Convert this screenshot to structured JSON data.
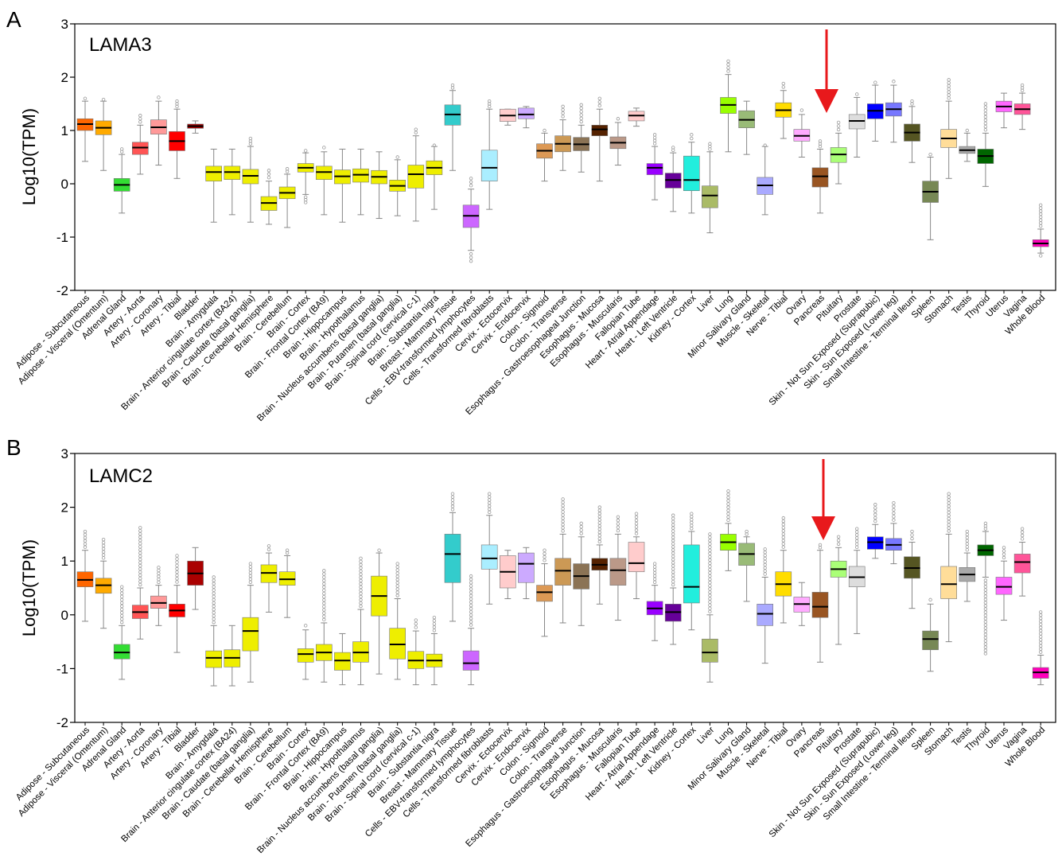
{
  "figure": {
    "panels": [
      {
        "letter": "A",
        "gene": "LAMA3",
        "ylabel": "Log10(TPM)",
        "arrow_tissue": "Pancreas"
      },
      {
        "letter": "B",
        "gene": "LAMC2",
        "ylabel": "Log10(TPM)",
        "arrow_tissue": "Pancreas"
      }
    ],
    "arrow_color": "#e8191c"
  },
  "chart_data": [
    {
      "type": "box",
      "title": "LAMA3",
      "ylabel": "Log10(TPM)",
      "ylim": [
        -2,
        3
      ],
      "yticks": [
        -2,
        -1,
        0,
        1,
        2,
        3
      ],
      "grid": false,
      "categories": [
        "Adipose - Subcutaneous",
        "Adipose - Visceral (Omentum)",
        "Adrenal Gland",
        "Artery - Aorta",
        "Artery - Coronary",
        "Artery - Tibial",
        "Bladder",
        "Brain - Amygdala",
        "Brain - Anterior cingulate cortex (BA24)",
        "Brain - Caudate (basal ganglia)",
        "Brain - Cerebellar Hemisphere",
        "Brain - Cerebellum",
        "Brain - Cortex",
        "Brain - Frontal Cortex (BA9)",
        "Brain - Hippocampus",
        "Brain - Hypothalamus",
        "Brain - Nucleus accumbens (basal ganglia)",
        "Brain - Putamen (basal ganglia)",
        "Brain - Spinal cord (cervical c-1)",
        "Brain - Substantia nigra",
        "Breast - Mammary Tissue",
        "Cells - EBV-transformed lymphocytes",
        "Cells - Transformed fibroblasts",
        "Cervix - Ectocervix",
        "Cervix - Endocervix",
        "Colon - Sigmoid",
        "Colon - Transverse",
        "Esophagus - Gastroesophageal Junction",
        "Esophagus - Mucosa",
        "Esophagus - Muscularis",
        "Fallopian Tube",
        "Heart - Atrial Appendage",
        "Heart - Left Ventricle",
        "Kidney - Cortex",
        "Liver",
        "Lung",
        "Minor Salivary Gland",
        "Muscle - Skeletal",
        "Nerve - Tibial",
        "Ovary",
        "Pancreas",
        "Pituitary",
        "Prostate",
        "Skin - Not Sun Exposed (Suprapubic)",
        "Skin - Sun Exposed (Lower leg)",
        "Small Intestine - Terminal Ileum",
        "Spleen",
        "Stomach",
        "Testis",
        "Thyroid",
        "Uterus",
        "Vagina",
        "Whole Blood"
      ],
      "colors": [
        "#ff6600",
        "#ffaa00",
        "#33dd33",
        "#ff5555",
        "#ff9999",
        "#ff0000",
        "#aa0000",
        "#eeee00",
        "#eeee00",
        "#eeee00",
        "#eeee00",
        "#eeee00",
        "#eeee00",
        "#eeee00",
        "#eeee00",
        "#eeee00",
        "#eeee00",
        "#eeee00",
        "#eeee00",
        "#eeee00",
        "#33cccc",
        "#cc66ff",
        "#aaeeff",
        "#ffcccc",
        "#ccaaff",
        "#dd9955",
        "#cc9955",
        "#8b7355",
        "#552200",
        "#bb9988",
        "#ffcccc",
        "#9900ff",
        "#660099",
        "#22eedd",
        "#aabb66",
        "#99ff00",
        "#99bb77",
        "#aaaaff",
        "#ffdd00",
        "#ffaaff",
        "#995522",
        "#aaff77",
        "#dddddd",
        "#0000ff",
        "#7777ff",
        "#555522",
        "#778855",
        "#ffdd99",
        "#aaaaaa",
        "#006600",
        "#ff66ff",
        "#ff5599",
        "#ff00bb"
      ],
      "medians": [
        1.12,
        1.05,
        -0.02,
        0.68,
        1.06,
        0.8,
        1.08,
        0.22,
        0.22,
        0.15,
        -0.36,
        -0.17,
        0.3,
        0.22,
        0.14,
        0.17,
        0.13,
        -0.04,
        0.18,
        0.3,
        1.3,
        -0.6,
        0.3,
        1.28,
        1.3,
        0.62,
        0.75,
        0.74,
        1.02,
        0.77,
        1.28,
        0.3,
        0.07,
        0.07,
        -0.22,
        1.48,
        1.2,
        -0.03,
        1.38,
        0.9,
        0.14,
        0.55,
        1.18,
        1.37,
        1.4,
        0.96,
        -0.15,
        0.85,
        0.63,
        0.52,
        1.45,
        1.4,
        -1.12
      ],
      "q1": [
        1.0,
        0.92,
        -0.14,
        0.55,
        0.93,
        0.62,
        1.04,
        0.05,
        0.08,
        0.0,
        -0.5,
        -0.28,
        0.22,
        0.08,
        0.0,
        0.03,
        0.0,
        -0.14,
        -0.08,
        0.17,
        1.1,
        -0.82,
        0.05,
        1.17,
        1.22,
        0.48,
        0.6,
        0.62,
        0.9,
        0.66,
        1.18,
        0.17,
        -0.08,
        -0.13,
        -0.45,
        1.32,
        1.05,
        -0.2,
        1.25,
        0.8,
        -0.06,
        0.4,
        1.03,
        1.22,
        1.27,
        0.8,
        -0.35,
        0.68,
        0.57,
        0.38,
        1.35,
        1.3,
        -1.18
      ],
      "q3": [
        1.22,
        1.18,
        0.1,
        0.78,
        1.2,
        0.98,
        1.12,
        0.33,
        0.33,
        0.27,
        -0.24,
        -0.06,
        0.38,
        0.33,
        0.26,
        0.28,
        0.25,
        0.07,
        0.35,
        0.43,
        1.48,
        -0.4,
        0.63,
        1.4,
        1.42,
        0.75,
        0.9,
        0.87,
        1.1,
        0.88,
        1.36,
        0.38,
        0.2,
        0.52,
        -0.04,
        1.62,
        1.37,
        0.12,
        1.52,
        1.02,
        0.3,
        0.68,
        1.3,
        1.5,
        1.52,
        1.12,
        0.05,
        1.02,
        0.7,
        0.65,
        1.55,
        1.5,
        -1.05
      ],
      "whisker_low": [
        0.42,
        0.25,
        -0.55,
        0.18,
        0.35,
        0.1,
        0.95,
        -0.72,
        -0.58,
        -0.72,
        -0.76,
        -0.82,
        -0.2,
        -0.58,
        -0.72,
        -0.58,
        -0.65,
        -0.6,
        -0.7,
        -0.48,
        0.25,
        -1.25,
        -0.48,
        1.1,
        1.05,
        0.05,
        0.25,
        0.22,
        0.05,
        0.35,
        1.08,
        -0.3,
        -0.52,
        -0.55,
        -0.92,
        0.6,
        0.55,
        -0.58,
        0.85,
        0.5,
        -0.55,
        0.0,
        0.5,
        0.8,
        0.78,
        0.4,
        -1.05,
        0.1,
        0.42,
        -0.05,
        1.05,
        1.02,
        -1.3
      ],
      "whisker_high": [
        1.55,
        1.55,
        0.55,
        1.1,
        1.55,
        1.4,
        1.18,
        0.65,
        0.65,
        0.7,
        0.05,
        0.18,
        0.58,
        0.6,
        0.65,
        0.65,
        0.6,
        0.45,
        0.9,
        0.7,
        1.75,
        -0.1,
        1.4,
        1.4,
        1.45,
        0.95,
        1.2,
        1.1,
        1.4,
        1.15,
        1.42,
        0.7,
        0.58,
        0.78,
        0.6,
        2.05,
        1.55,
        0.7,
        1.75,
        1.3,
        0.65,
        0.95,
        1.62,
        1.85,
        1.85,
        1.45,
        0.5,
        1.55,
        0.95,
        0.95,
        1.7,
        1.7,
        -0.85
      ],
      "outlier_low": [
        null,
        null,
        null,
        null,
        null,
        null,
        null,
        null,
        null,
        null,
        null,
        null,
        -0.35,
        null,
        null,
        null,
        null,
        null,
        null,
        null,
        null,
        -1.45,
        null,
        null,
        null,
        null,
        null,
        null,
        null,
        null,
        null,
        null,
        null,
        null,
        null,
        null,
        null,
        null,
        null,
        null,
        null,
        null,
        null,
        null,
        null,
        null,
        null,
        null,
        null,
        null,
        null,
        null,
        -1.35
      ],
      "outlier_high": [
        1.6,
        1.58,
        0.65,
        1.28,
        1.62,
        1.55,
        null,
        null,
        null,
        0.85,
        0.25,
        0.28,
        0.62,
        0.68,
        null,
        null,
        null,
        0.5,
        1.02,
        0.72,
        1.85,
        0.1,
        1.55,
        null,
        null,
        1.0,
        1.45,
        1.48,
        1.6,
        1.22,
        null,
        0.92,
        0.68,
        0.92,
        0.75,
        2.3,
        null,
        0.72,
        1.88,
        1.38,
        0.8,
        1.15,
        1.68,
        1.9,
        1.92,
        1.55,
        0.55,
        1.95,
        1.0,
        1.5,
        null,
        1.85,
        -0.4
      ]
    },
    {
      "type": "box",
      "title": "LAMC2",
      "ylabel": "Log10(TPM)",
      "ylim": [
        -2,
        3
      ],
      "yticks": [
        -2,
        -1,
        0,
        1,
        2,
        3
      ],
      "grid": false,
      "categories": [
        "Adipose - Subcutaneous",
        "Adipose - Visceral (Omentum)",
        "Adrenal Gland",
        "Artery - Aorta",
        "Artery - Coronary",
        "Artery - Tibial",
        "Bladder",
        "Brain - Amygdala",
        "Brain - Anterior cingulate cortex (BA24)",
        "Brain - Caudate (basal ganglia)",
        "Brain - Cerebellar Hemisphere",
        "Brain - Cerebellum",
        "Brain - Cortex",
        "Brain - Frontal Cortex (BA9)",
        "Brain - Hippocampus",
        "Brain - Hypothalamus",
        "Brain - Nucleus accumbens (basal ganglia)",
        "Brain - Putamen (basal ganglia)",
        "Brain - Spinal cord (cervical c-1)",
        "Brain - Substantia nigra",
        "Breast - Mammary Tissue",
        "Cells - EBV-transformed lymphocytes",
        "Cells - Transformed fibroblasts",
        "Cervix - Ectocervix",
        "Cervix - Endocervix",
        "Colon - Sigmoid",
        "Colon - Transverse",
        "Esophagus - Gastroesophageal Junction",
        "Esophagus - Mucosa",
        "Esophagus - Muscularis",
        "Fallopian Tube",
        "Heart - Atrial Appendage",
        "Heart - Left Ventricle",
        "Kidney - Cortex",
        "Liver",
        "Lung",
        "Minor Salivary Gland",
        "Muscle - Skeletal",
        "Nerve - Tibial",
        "Ovary",
        "Pancreas",
        "Pituitary",
        "Prostate",
        "Skin - Not Sun Exposed (Suprapubic)",
        "Skin - Sun Exposed (Lower leg)",
        "Small Intestine - Terminal Ileum",
        "Spleen",
        "Stomach",
        "Testis",
        "Thyroid",
        "Uterus",
        "Vagina",
        "Whole Blood"
      ],
      "colors": [
        "#ff6600",
        "#ffaa00",
        "#33dd33",
        "#ff5555",
        "#ff9999",
        "#ff0000",
        "#aa0000",
        "#eeee00",
        "#eeee00",
        "#eeee00",
        "#eeee00",
        "#eeee00",
        "#eeee00",
        "#eeee00",
        "#eeee00",
        "#eeee00",
        "#eeee00",
        "#eeee00",
        "#eeee00",
        "#eeee00",
        "#33cccc",
        "#cc66ff",
        "#aaeeff",
        "#ffcccc",
        "#ccaaff",
        "#dd9955",
        "#cc9955",
        "#8b7355",
        "#552200",
        "#bb9988",
        "#ffcccc",
        "#9900ff",
        "#660099",
        "#22eedd",
        "#aabb66",
        "#99ff00",
        "#99bb77",
        "#aaaaff",
        "#ffdd00",
        "#ffaaff",
        "#995522",
        "#aaff77",
        "#dddddd",
        "#0000ff",
        "#7777ff",
        "#555522",
        "#778855",
        "#ffdd99",
        "#aaaaaa",
        "#006600",
        "#ff66ff",
        "#ff5599",
        "#ff00bb"
      ],
      "medians": [
        0.65,
        0.55,
        -0.7,
        0.05,
        0.22,
        0.08,
        0.77,
        -0.8,
        -0.8,
        -0.3,
        0.78,
        0.66,
        -0.73,
        -0.7,
        -0.85,
        -0.7,
        0.35,
        -0.55,
        -0.85,
        -0.85,
        1.13,
        -0.9,
        1.05,
        0.8,
        0.95,
        0.42,
        0.82,
        0.72,
        0.93,
        0.83,
        0.96,
        0.12,
        0.05,
        0.52,
        -0.7,
        1.35,
        1.13,
        0.02,
        0.57,
        0.2,
        0.15,
        0.85,
        0.7,
        1.35,
        1.3,
        0.87,
        -0.45,
        0.57,
        0.75,
        1.2,
        0.52,
        0.98,
        -1.07
      ],
      "q1": [
        0.52,
        0.4,
        -0.82,
        -0.07,
        0.12,
        -0.04,
        0.55,
        -0.98,
        -0.97,
        -0.67,
        0.6,
        0.55,
        -0.88,
        -0.85,
        -1.03,
        -0.88,
        -0.02,
        -0.82,
        -1.0,
        -0.97,
        0.6,
        -1.03,
        0.85,
        0.5,
        0.6,
        0.25,
        0.55,
        0.48,
        0.83,
        0.55,
        0.8,
        0.0,
        -0.12,
        0.22,
        -0.88,
        1.2,
        0.92,
        -0.2,
        0.35,
        0.05,
        -0.05,
        0.7,
        0.52,
        1.22,
        1.2,
        0.68,
        -0.65,
        0.3,
        0.62,
        1.1,
        0.38,
        0.78,
        -1.18
      ],
      "q3": [
        0.8,
        0.68,
        -0.55,
        0.18,
        0.35,
        0.2,
        1.0,
        -0.67,
        -0.65,
        -0.05,
        0.93,
        0.8,
        -0.63,
        -0.55,
        -0.7,
        -0.5,
        0.72,
        -0.25,
        -0.68,
        -0.73,
        1.5,
        -0.67,
        1.3,
        1.1,
        1.15,
        0.55,
        1.05,
        0.95,
        1.05,
        1.05,
        1.35,
        0.25,
        0.2,
        1.3,
        -0.45,
        1.5,
        1.33,
        0.2,
        0.8,
        0.33,
        0.42,
        1.0,
        0.9,
        1.45,
        1.42,
        1.08,
        -0.3,
        0.9,
        0.88,
        1.3,
        0.7,
        1.13,
        -0.98
      ],
      "whisker_low": [
        -0.12,
        -0.25,
        -1.2,
        -0.45,
        -0.2,
        -0.7,
        0.1,
        -1.32,
        -1.32,
        -1.25,
        0.05,
        -0.05,
        -1.2,
        -1.25,
        -1.3,
        -1.3,
        -1.1,
        -1.2,
        -1.3,
        -1.3,
        -0.12,
        -1.3,
        0.2,
        0.3,
        0.3,
        -0.4,
        -0.15,
        -0.2,
        0.2,
        -0.1,
        0.3,
        -0.48,
        -0.55,
        -0.28,
        -1.25,
        0.82,
        0.25,
        -0.9,
        -0.15,
        -0.2,
        -0.88,
        -0.55,
        -0.35,
        1.05,
        0.95,
        0.12,
        -1.05,
        -0.5,
        0.25,
        0.7,
        -0.1,
        0.35,
        -1.3
      ],
      "whisker_high": [
        1.2,
        1.0,
        -0.2,
        0.5,
        0.55,
        0.55,
        1.25,
        -0.2,
        -0.2,
        0.55,
        1.15,
        1.1,
        -0.28,
        -0.15,
        -0.35,
        0.1,
        1.15,
        0.3,
        -0.3,
        -0.35,
        1.9,
        -0.25,
        1.85,
        1.2,
        1.25,
        0.95,
        1.5,
        1.45,
        1.3,
        1.5,
        1.45,
        0.55,
        0.5,
        1.55,
        0.0,
        1.7,
        1.45,
        0.7,
        1.2,
        0.6,
        1.2,
        1.25,
        1.2,
        1.68,
        1.7,
        1.35,
        0.2,
        1.5,
        1.15,
        1.55,
        1.0,
        1.35,
        -0.75
      ],
      "outlier_low": [
        null,
        null,
        null,
        null,
        null,
        null,
        null,
        null,
        null,
        null,
        null,
        null,
        null,
        null,
        null,
        null,
        null,
        null,
        null,
        null,
        null,
        null,
        null,
        null,
        null,
        null,
        null,
        null,
        null,
        null,
        null,
        null,
        null,
        null,
        null,
        null,
        null,
        null,
        null,
        null,
        null,
        null,
        null,
        null,
        null,
        null,
        null,
        null,
        null,
        -0.72,
        null,
        null,
        null
      ],
      "outlier_high": [
        1.55,
        1.4,
        0.52,
        1.62,
        0.88,
        1.1,
        null,
        0.7,
        null,
        0.95,
        1.28,
        1.2,
        -0.2,
        0.82,
        null,
        1.05,
        1.2,
        0.95,
        -0.1,
        -0.05,
        2.25,
        0.72,
        2.25,
        null,
        null,
        1.2,
        2.15,
        1.7,
        2.0,
        1.82,
        1.88,
        0.95,
        1.85,
        1.88,
        1.5,
        2.3,
        1.55,
        1.22,
        1.8,
        null,
        1.3,
        1.45,
        1.6,
        2.05,
        2.08,
        1.55,
        0.28,
        2.25,
        1.55,
        1.7,
        1.25,
        1.6,
        0.05
      ]
    }
  ]
}
